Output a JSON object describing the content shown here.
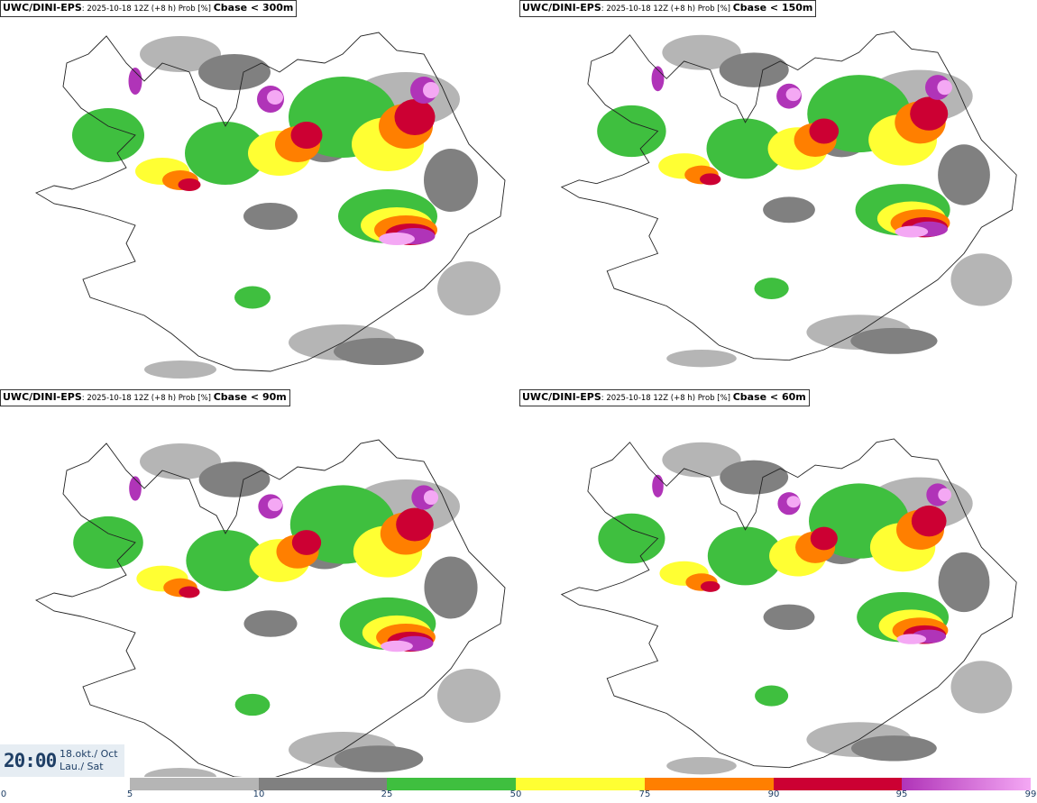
{
  "panels": [
    {
      "model": "UWC/DINI-EPS",
      "meta": ": 2025-10-18 12Z (+8 h) Prob [%] ",
      "param": "Cbase < 300m"
    },
    {
      "model": "UWC/DINI-EPS",
      "meta": ": 2025-10-18 12Z (+8 h) Prob [%] ",
      "param": "Cbase < 150m"
    },
    {
      "model": "UWC/DINI-EPS",
      "meta": ": 2025-10-18 12Z (+8 h) Prob [%] ",
      "param": "Cbase < 90m"
    },
    {
      "model": "UWC/DINI-EPS",
      "meta": ": 2025-10-18 12Z (+8 h) Prob [%] ",
      "param": "Cbase < 60m"
    }
  ],
  "valid_time": {
    "time": "20:00",
    "date_line1": "18.okt./ Oct",
    "date_line2": "Lau./ Sat"
  },
  "legend": {
    "ticks": [
      "0",
      "5",
      "10",
      "25",
      "50",
      "75",
      "90",
      "95",
      "99"
    ],
    "colors": [
      "#ffffff",
      "#b5b5b5",
      "#808080",
      "#3fbf3f",
      "#ffff33",
      "#ff7f00",
      "#cc0033",
      "#b034b8",
      "#f4a8f4"
    ]
  }
}
